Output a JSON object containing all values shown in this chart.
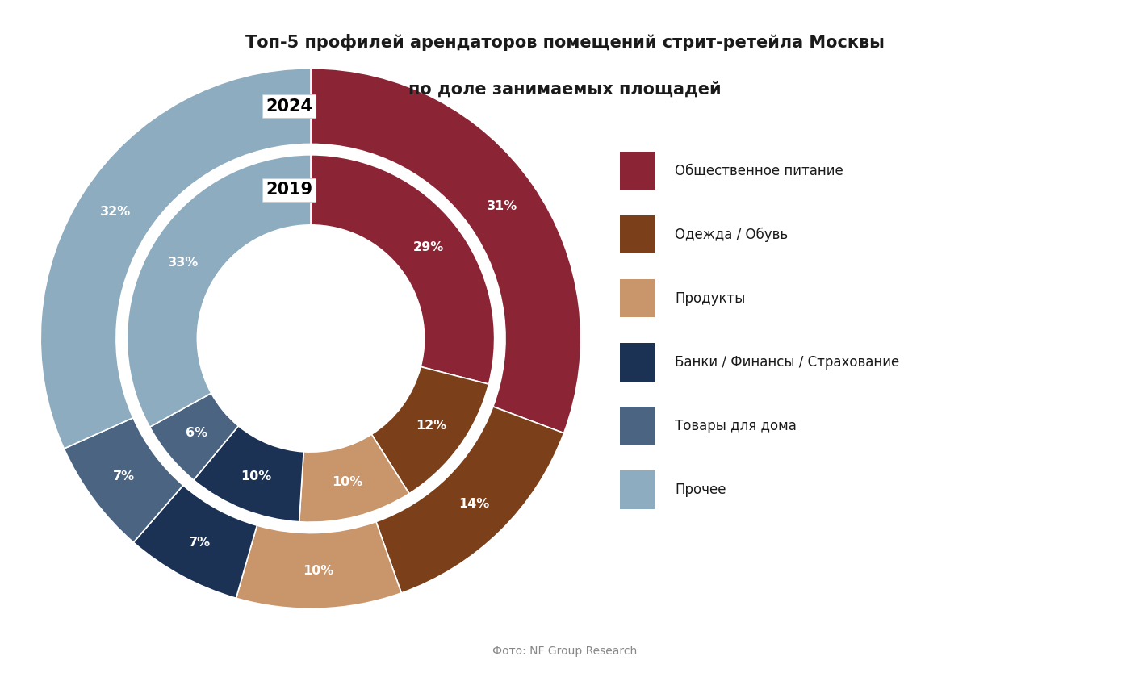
{
  "title_line1": "Топ-5 профилей арендаторов помещений стрит-ретейла Москвы",
  "title_line2": "по доле занимаемых площадей",
  "title_fontsize": 15,
  "background_color": "#ffffff",
  "outer_year": "2024",
  "inner_year": "2019",
  "categories": [
    "Общественное питание",
    "Одежда / Обувь",
    "Продукты",
    "Банки / Финансы / Страхование",
    "Товары для дома",
    "Прочее"
  ],
  "colors": [
    "#8B2535",
    "#7B3F1A",
    "#C9956A",
    "#1C3255",
    "#4A6482",
    "#8DACC0"
  ],
  "outer_values": [
    31,
    14,
    10,
    7,
    7,
    32
  ],
  "inner_values": [
    29,
    12,
    10,
    10,
    6,
    33
  ],
  "outer_labels": [
    "31%",
    "14%",
    "10%",
    "7%",
    "7%",
    "32%"
  ],
  "inner_labels": [
    "29%",
    "12%",
    "10%",
    "10%",
    "6%",
    "33%"
  ],
  "label_color": "#ffffff",
  "label_fontsize": 11.5,
  "year_fontsize": 15,
  "legend_fontsize": 12,
  "startangle": 90,
  "footer": "Фото: NF Group Research",
  "footer_fontsize": 10,
  "footer_color": "#888888"
}
